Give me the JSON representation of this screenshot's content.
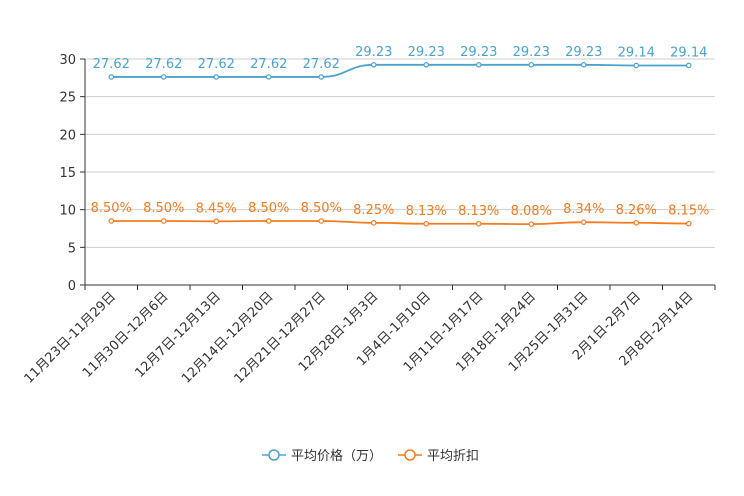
{
  "chart_data": {
    "type": "line",
    "categories": [
      "11月23日-11月29日",
      "11月30日-12月6日",
      "12月7日-12月13日",
      "12月14日-12月20日",
      "12月21日-12月27日",
      "12月28日-1月3日",
      "1月4日-1月10日",
      "1月11日-1月17日",
      "1月18日-1月24日",
      "1月25日-1月31日",
      "2月1日-2月7日",
      "2月8日-2月14日"
    ],
    "ylim": [
      0,
      30
    ],
    "yticks": [
      0,
      5,
      10,
      15,
      20,
      25,
      30
    ],
    "grid": "horizontal",
    "legend_position": "bottom-center",
    "series": [
      {
        "name": "平均价格（万）",
        "color": "#4aa3cf",
        "values": [
          27.62,
          27.62,
          27.62,
          27.62,
          27.62,
          29.23,
          29.23,
          29.23,
          29.23,
          29.23,
          29.14,
          29.14
        ],
        "labels": [
          "27.62",
          "27.62",
          "27.62",
          "27.62",
          "27.62",
          "29.23",
          "29.23",
          "29.23",
          "29.23",
          "29.23",
          "29.14",
          "29.14"
        ]
      },
      {
        "name": "平均折扣",
        "color": "#f57b1f",
        "values": [
          8.5,
          8.5,
          8.45,
          8.5,
          8.5,
          8.25,
          8.13,
          8.13,
          8.08,
          8.34,
          8.26,
          8.15
        ],
        "labels": [
          "8.50%",
          "8.50%",
          "8.45%",
          "8.50%",
          "8.50%",
          "8.25%",
          "8.13%",
          "8.13%",
          "8.08%",
          "8.34%",
          "8.26%",
          "8.15%"
        ]
      }
    ]
  }
}
